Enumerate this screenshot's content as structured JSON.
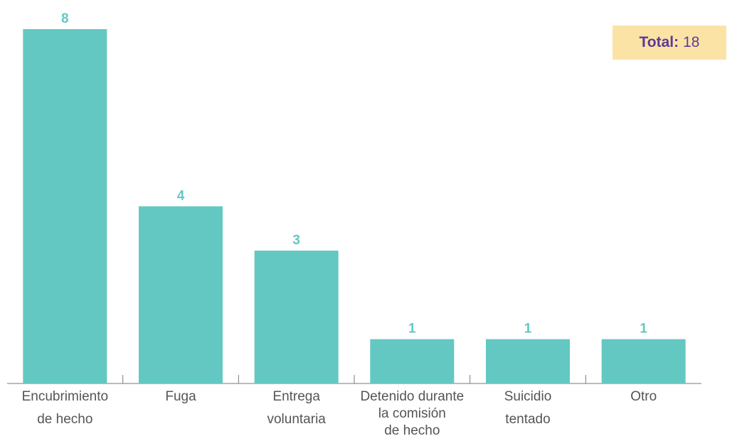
{
  "colors": {
    "bar": "#63c8c2",
    "value_label": "#63c8c2",
    "axis": "#7a7a7a",
    "category_text": "#555555",
    "total_box_bg": "#fbe3a6",
    "total_label": "#5e3a94"
  },
  "total": {
    "label": "Total:",
    "value": "18"
  },
  "chart_data": {
    "type": "bar",
    "categories": [
      [
        "Encubrimiento",
        "de hecho"
      ],
      [
        "Fuga"
      ],
      [
        "Entrega",
        "voluntaria"
      ],
      [
        "Detenido durante",
        "la comisión",
        "de hecho"
      ],
      [
        "Suicidio",
        "tentado"
      ],
      [
        "Otro"
      ]
    ],
    "values": [
      8,
      4,
      3,
      1,
      1,
      1
    ],
    "ylim": [
      0,
      8
    ],
    "title": "",
    "xlabel": "",
    "ylabel": "",
    "grid": false
  }
}
